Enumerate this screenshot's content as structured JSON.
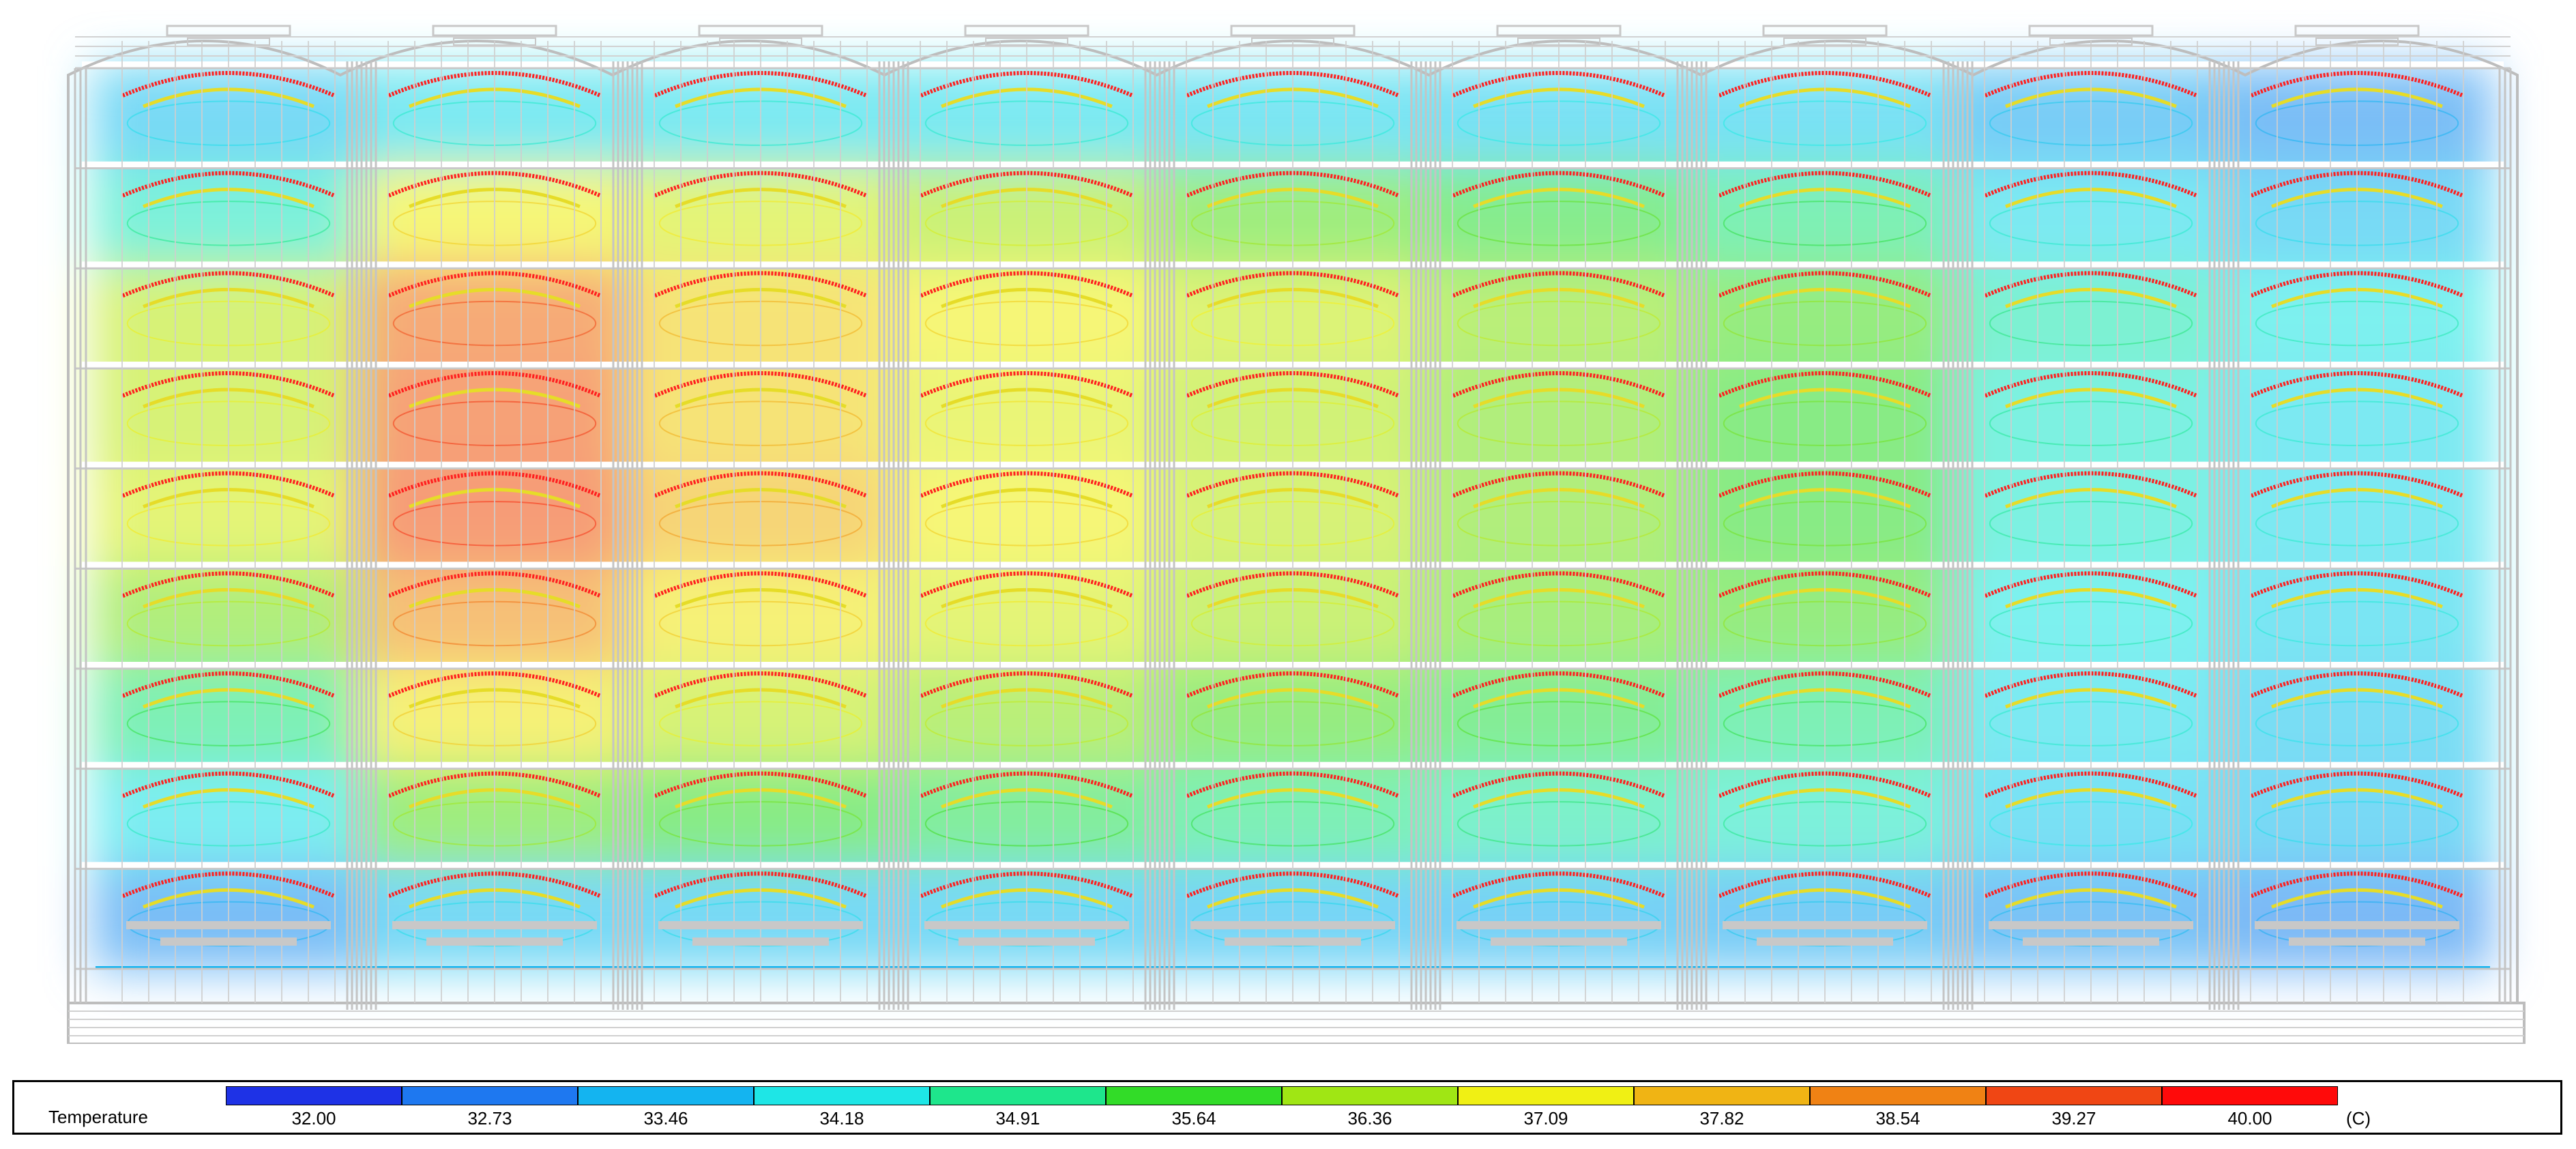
{
  "chart_data": {
    "type": "heatmap",
    "title": "",
    "variable": "Temperature",
    "unit": "(C)",
    "colorbar": {
      "ticks": [
        "32.00",
        "32.73",
        "33.46",
        "34.18",
        "34.91",
        "35.64",
        "36.36",
        "37.09",
        "37.82",
        "38.54",
        "39.27",
        "40.00"
      ],
      "min": 32.0,
      "max": 40.0,
      "colors": [
        "#1e32e6",
        "#1e78f0",
        "#14b4f0",
        "#1ee6e6",
        "#1ee68c",
        "#32dc28",
        "#a0e614",
        "#f0f014",
        "#f0b414",
        "#f08214",
        "#f04614",
        "#ff0a0a"
      ]
    },
    "grid": {
      "bays": 9,
      "tiers": 9,
      "temperature_field": [
        [
          33.6,
          34.0,
          34.0,
          34.0,
          33.9,
          33.8,
          33.8,
          33.3,
          33.0
        ],
        [
          34.5,
          37.1,
          36.8,
          36.4,
          35.9,
          35.5,
          35.0,
          34.0,
          33.6
        ],
        [
          36.6,
          38.8,
          37.5,
          37.1,
          36.7,
          36.2,
          35.8,
          34.6,
          34.2
        ],
        [
          36.6,
          39.0,
          37.5,
          36.9,
          36.5,
          36.1,
          35.6,
          34.4,
          34.0
        ],
        [
          36.8,
          39.1,
          37.8,
          37.1,
          36.6,
          36.1,
          35.6,
          34.4,
          34.0
        ],
        [
          36.1,
          38.3,
          37.2,
          36.8,
          36.4,
          36.0,
          35.8,
          34.2,
          33.9
        ],
        [
          35.0,
          37.2,
          36.6,
          36.2,
          35.8,
          35.4,
          35.0,
          34.0,
          33.7
        ],
        [
          34.1,
          35.9,
          35.6,
          35.3,
          35.0,
          34.7,
          34.5,
          33.8,
          33.6
        ],
        [
          33.0,
          33.6,
          33.6,
          33.6,
          33.5,
          33.4,
          33.3,
          33.1,
          32.9
        ]
      ]
    }
  }
}
